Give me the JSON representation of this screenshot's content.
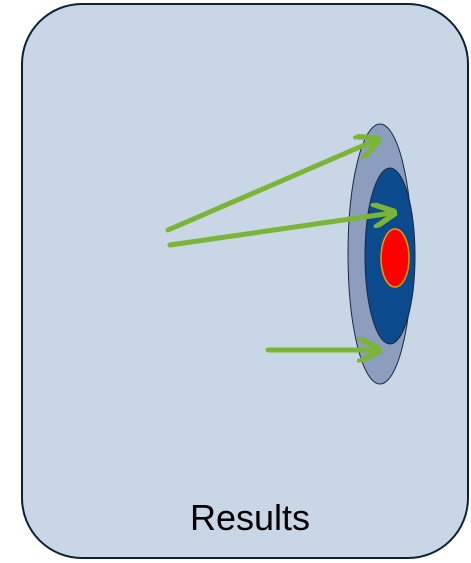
{
  "panel": {
    "caption": "Results"
  },
  "colors": {
    "panel_fill": "#c9d6e5",
    "panel_stroke": "#0d2236",
    "target_outer": "#8c9dbd",
    "target_middle": "#0b4a8c",
    "target_center": "#ff0000",
    "target_center_stroke": "#e0a000",
    "arrow": "#7ab536"
  },
  "icons": {
    "target": "target-icon",
    "arrow": "arrow-icon"
  }
}
